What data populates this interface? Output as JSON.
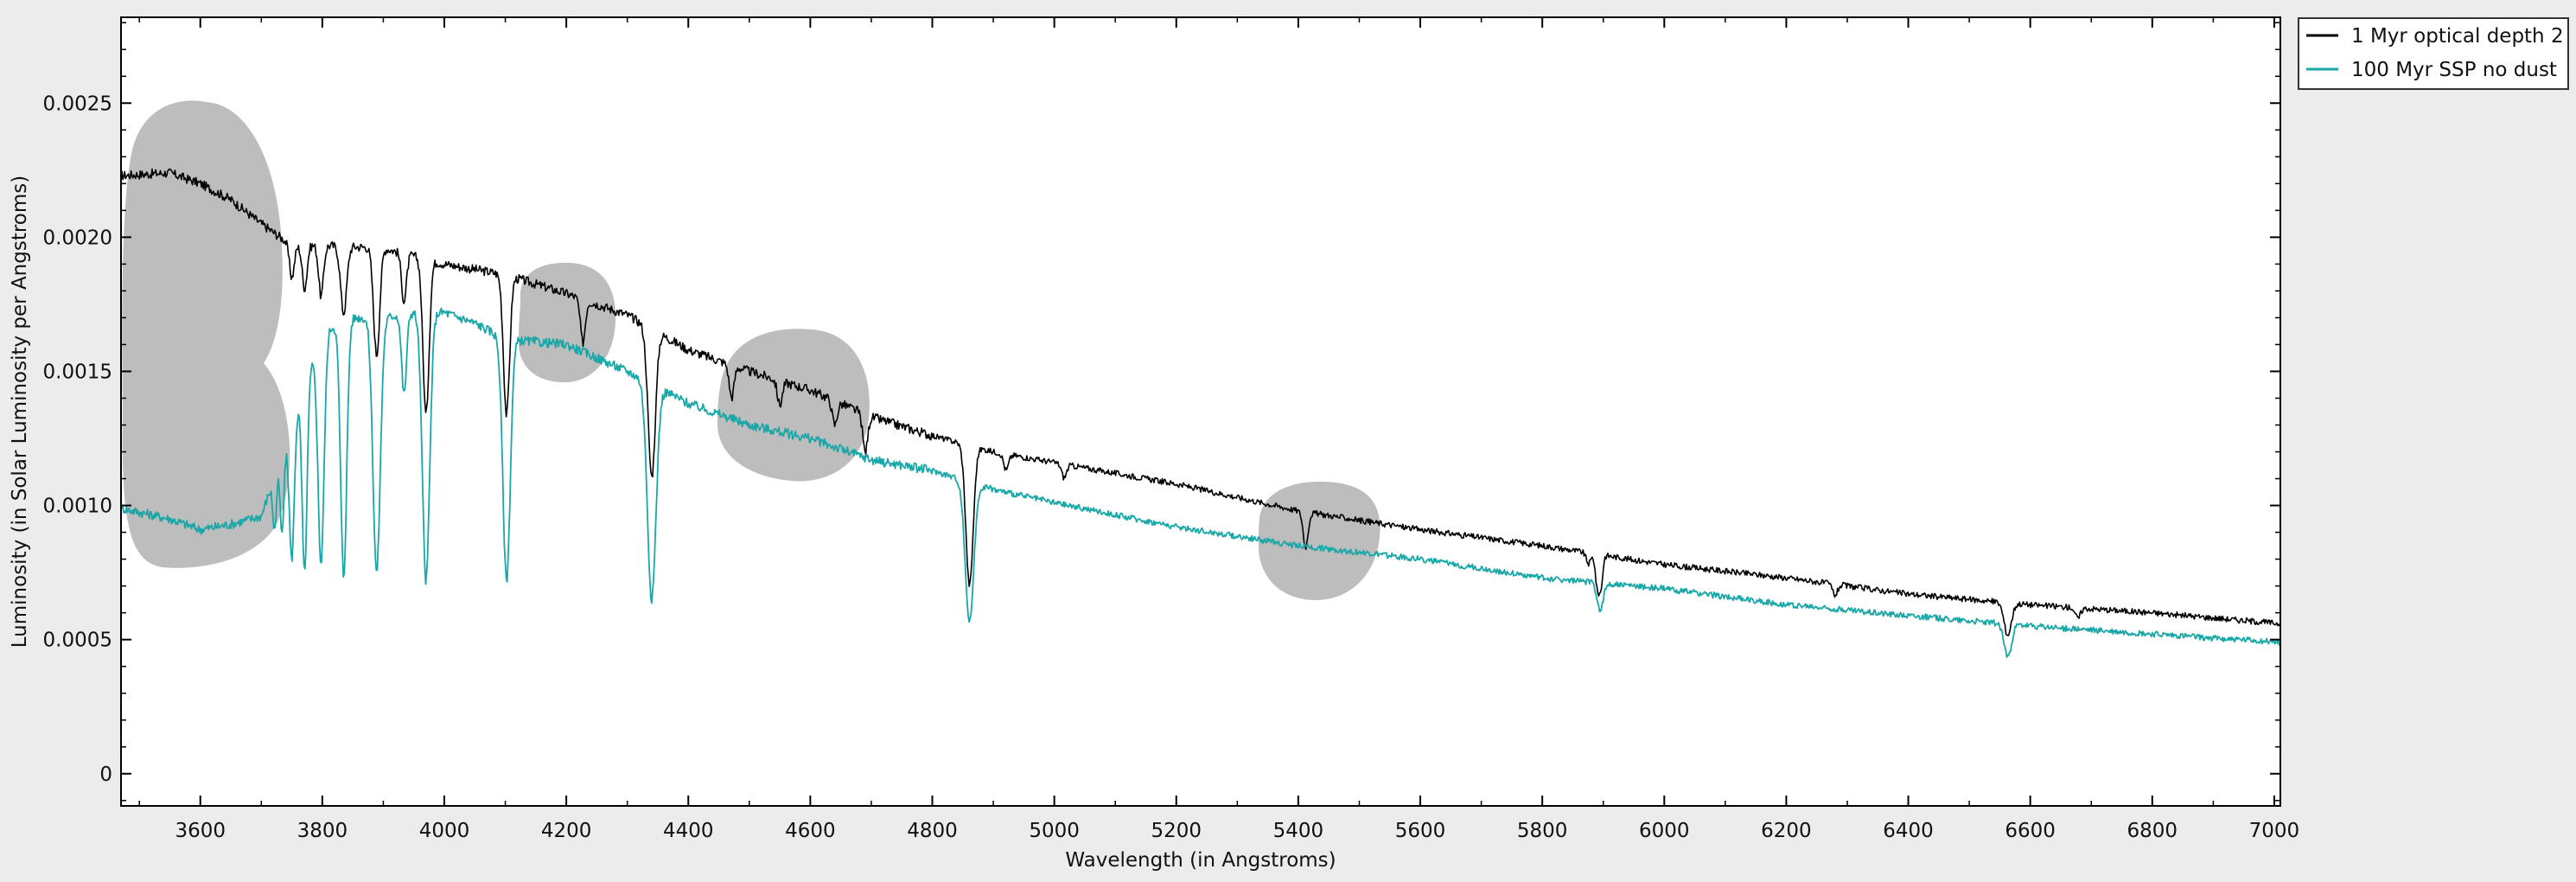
{
  "chart_data": {
    "type": "line",
    "title": "",
    "xlabel": "Wavelength (in Angstroms)",
    "ylabel": "Luminosity (in Solar Luminosity per Angstroms)",
    "xlim": [
      3470,
      7010
    ],
    "ylim": [
      -0.00012,
      0.00282
    ],
    "x_ticks": [
      3600,
      3800,
      4000,
      4200,
      4400,
      4600,
      4800,
      5000,
      5200,
      5400,
      5600,
      5800,
      6000,
      6200,
      6400,
      6600,
      6800,
      7000
    ],
    "x_tick_labels": [
      "3600",
      "3800",
      "4000",
      "4200",
      "4400",
      "4600",
      "4800",
      "5000",
      "5200",
      "5400",
      "5600",
      "5800",
      "6000",
      "6200",
      "6400",
      "6600",
      "6800",
      "7000"
    ],
    "y_ticks": [
      0,
      0.0005,
      0.001,
      0.0015,
      0.002,
      0.0025
    ],
    "y_tick_labels": [
      "0",
      "0.0005",
      "0.0010",
      "0.0015",
      "0.0020",
      "0.0025"
    ],
    "grid": false,
    "legend_position": "outside-right-top",
    "background": "#ffffff",
    "series": [
      {
        "name": "1 Myr optical depth 2",
        "color": "#000000",
        "continuum": [
          [
            3470,
            0.00223
          ],
          [
            3550,
            0.00224
          ],
          [
            3600,
            0.0022
          ],
          [
            3650,
            0.00214
          ],
          [
            3700,
            0.00205
          ],
          [
            3750,
            0.00197
          ],
          [
            3800,
            0.00197
          ],
          [
            3900,
            0.00196
          ],
          [
            4000,
            0.0019
          ],
          [
            4100,
            0.00186
          ],
          [
            4200,
            0.00179
          ],
          [
            4300,
            0.00171
          ],
          [
            4400,
            0.00158
          ],
          [
            4500,
            0.0015
          ],
          [
            4600,
            0.00143
          ],
          [
            4700,
            0.00133
          ],
          [
            4800,
            0.00126
          ],
          [
            4900,
            0.0012
          ],
          [
            5000,
            0.00116
          ],
          [
            5200,
            0.00108
          ],
          [
            5400,
            0.00098
          ],
          [
            5600,
            0.00091
          ],
          [
            5800,
            0.00085
          ],
          [
            6000,
            0.00078
          ],
          [
            6200,
            0.00073
          ],
          [
            6400,
            0.00067
          ],
          [
            6600,
            0.00063
          ],
          [
            6800,
            0.0006
          ],
          [
            7010,
            0.00056
          ]
        ],
        "absorption_lines": [
          {
            "wavelength": 3750,
            "depth": 0.00012,
            "width": 4
          },
          {
            "wavelength": 3771,
            "depth": 0.00016,
            "width": 4
          },
          {
            "wavelength": 3798,
            "depth": 0.00019,
            "width": 4
          },
          {
            "wavelength": 3835,
            "depth": 0.00025,
            "width": 5
          },
          {
            "wavelength": 3889,
            "depth": 0.0004,
            "width": 5
          },
          {
            "wavelength": 3934,
            "depth": 0.00018,
            "width": 4
          },
          {
            "wavelength": 3970,
            "depth": 0.00058,
            "width": 5
          },
          {
            "wavelength": 4102,
            "depth": 0.00052,
            "width": 5
          },
          {
            "wavelength": 4227,
            "depth": 0.00016,
            "width": 4
          },
          {
            "wavelength": 4340,
            "depth": 0.00055,
            "width": 6
          },
          {
            "wavelength": 4471,
            "depth": 0.00012,
            "width": 4
          },
          {
            "wavelength": 4550,
            "depth": 9e-05,
            "width": 4
          },
          {
            "wavelength": 4640,
            "depth": 9e-05,
            "width": 4
          },
          {
            "wavelength": 4690,
            "depth": 0.00014,
            "width": 4
          },
          {
            "wavelength": 4861,
            "depth": 0.00052,
            "width": 6
          },
          {
            "wavelength": 4921,
            "depth": 6e-05,
            "width": 4
          },
          {
            "wavelength": 5016,
            "depth": 5e-05,
            "width": 4
          },
          {
            "wavelength": 5412,
            "depth": 0.00013,
            "width": 4
          },
          {
            "wavelength": 5876,
            "depth": 4e-05,
            "width": 4
          },
          {
            "wavelength": 5890,
            "depth": 0.00012,
            "width": 3
          },
          {
            "wavelength": 5896,
            "depth": 0.00012,
            "width": 3
          },
          {
            "wavelength": 6280,
            "depth": 4e-05,
            "width": 4
          },
          {
            "wavelength": 6563,
            "depth": 0.00012,
            "width": 6
          },
          {
            "wavelength": 6678,
            "depth": 4e-05,
            "width": 4
          }
        ]
      },
      {
        "name": "100 Myr SSP no dust",
        "color": "#1aa7a7",
        "continuum": [
          [
            3470,
            0.00099
          ],
          [
            3550,
            0.00095
          ],
          [
            3600,
            0.00091
          ],
          [
            3650,
            0.00093
          ],
          [
            3700,
            0.00096
          ],
          [
            3750,
            0.0013
          ],
          [
            3800,
            0.00165
          ],
          [
            3850,
            0.0017
          ],
          [
            3900,
            0.0017
          ],
          [
            3950,
            0.00172
          ],
          [
            4000,
            0.00172
          ],
          [
            4050,
            0.00168
          ],
          [
            4100,
            0.00162
          ],
          [
            4200,
            0.0016
          ],
          [
            4300,
            0.0015
          ],
          [
            4400,
            0.00138
          ],
          [
            4500,
            0.0013
          ],
          [
            4600,
            0.00125
          ],
          [
            4700,
            0.00117
          ],
          [
            4800,
            0.00113
          ],
          [
            4900,
            0.00106
          ],
          [
            5000,
            0.00101
          ],
          [
            5200,
            0.00092
          ],
          [
            5400,
            0.00085
          ],
          [
            5600,
            0.0008
          ],
          [
            5800,
            0.00073
          ],
          [
            6000,
            0.00069
          ],
          [
            6200,
            0.00063
          ],
          [
            6400,
            0.00059
          ],
          [
            6600,
            0.00055
          ],
          [
            6800,
            0.00052
          ],
          [
            7010,
            0.00049
          ]
        ],
        "absorption_lines": [
          {
            "wavelength": 3722,
            "depth": 0.0002,
            "width": 3
          },
          {
            "wavelength": 3734,
            "depth": 0.0003,
            "width": 3
          },
          {
            "wavelength": 3750,
            "depth": 0.0005,
            "width": 4
          },
          {
            "wavelength": 3771,
            "depth": 0.0007,
            "width": 4
          },
          {
            "wavelength": 3798,
            "depth": 0.00085,
            "width": 5
          },
          {
            "wavelength": 3835,
            "depth": 0.00095,
            "width": 5
          },
          {
            "wavelength": 3889,
            "depth": 0.00095,
            "width": 6
          },
          {
            "wavelength": 3934,
            "depth": 0.0003,
            "width": 4
          },
          {
            "wavelength": 3970,
            "depth": 0.001,
            "width": 6
          },
          {
            "wavelength": 4102,
            "depth": 0.0009,
            "width": 6
          },
          {
            "wavelength": 4340,
            "depth": 0.0008,
            "width": 7
          },
          {
            "wavelength": 4861,
            "depth": 0.00052,
            "width": 7
          },
          {
            "wavelength": 5895,
            "depth": 0.0001,
            "width": 5
          },
          {
            "wavelength": 6563,
            "depth": 0.00012,
            "width": 6
          }
        ]
      }
    ]
  },
  "overlay": {
    "shade_color": "#bdbdbd"
  }
}
